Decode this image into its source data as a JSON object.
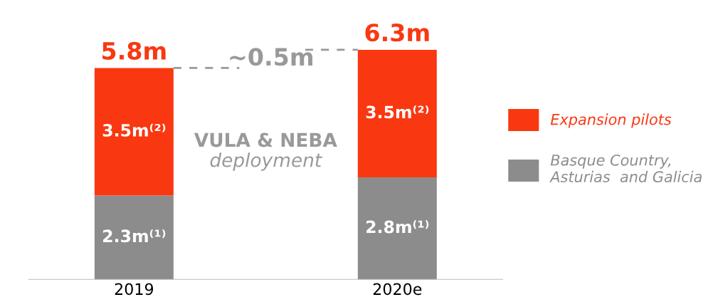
{
  "chart_data": {
    "type": "bar",
    "stacked": true,
    "categories": [
      "2019",
      "2020e"
    ],
    "series": [
      {
        "name": "Basque Country,\nAsturias  and Galicia",
        "color": "#8c8c8c",
        "values": [
          2.3,
          2.8
        ],
        "value_labels": [
          "2.3m⁽¹⁾",
          "2.8m⁽¹⁾"
        ]
      },
      {
        "name": "Expansion pilots",
        "color": "#f93811",
        "values": [
          3.5,
          3.5
        ],
        "value_labels": [
          "3.5m⁽²⁾",
          "3.5m⁽²⁾"
        ]
      }
    ],
    "totals": [
      "5.8m",
      "6.3m"
    ],
    "annotations": [
      "~0.5m",
      "VULA & NEBA",
      "deployment"
    ],
    "legend": "right",
    "grid": false
  }
}
